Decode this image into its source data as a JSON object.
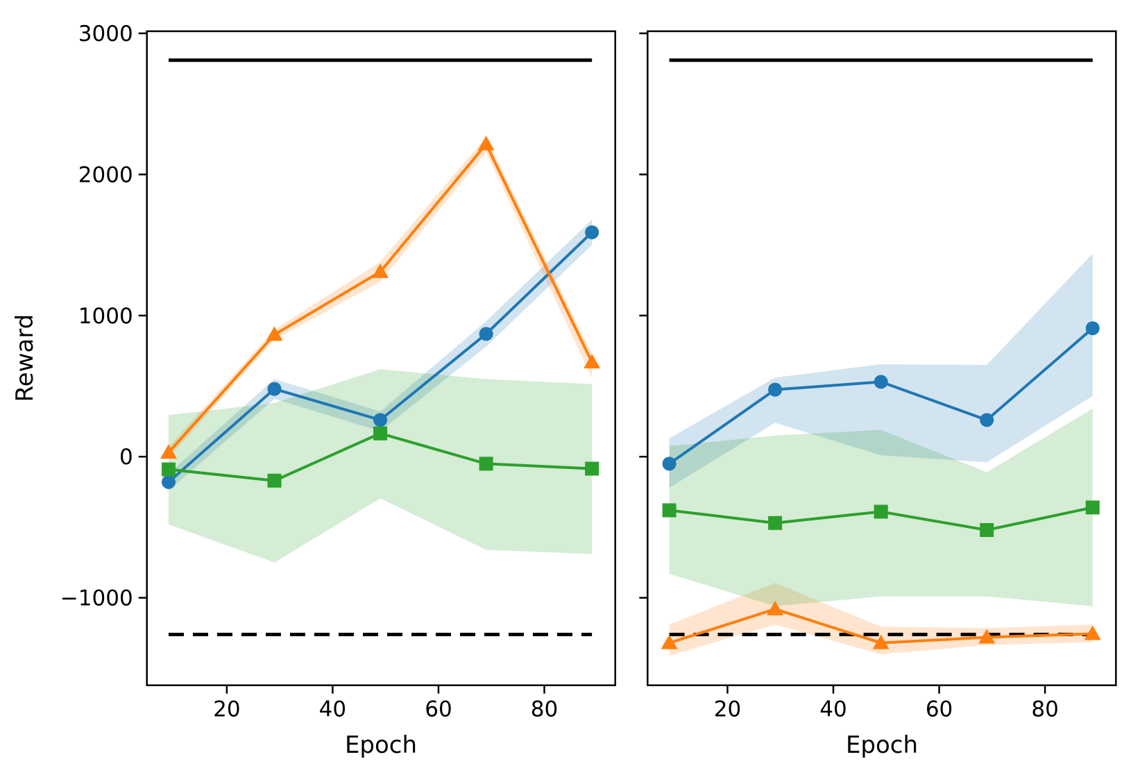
{
  "chart_data": {
    "type": "line",
    "title": "",
    "ylabel": "Reward",
    "legend": "none",
    "grid": "off",
    "colors": {
      "blue_series": "#1f77b4",
      "orange_series": "#ff7f0e",
      "green_series": "#2ca02c",
      "reference_lines": "#000000",
      "band_opacity_note": "shaded std bands at ~20% opacity of series color"
    },
    "panels": [
      {
        "name": "left-panel",
        "xlabel": "Epoch",
        "xlim": [
          4.9,
          93.4
        ],
        "ylim": [
          -1620,
          3015
        ],
        "xticks": [
          20,
          40,
          60,
          80
        ],
        "yticks": [
          -1000,
          0,
          1000,
          2000,
          3000
        ],
        "ytick_labels_visible": true,
        "x": [
          9,
          29,
          49,
          69,
          89
        ],
        "reference_lines": [
          {
            "name": "upper-solid-line",
            "style": "solid",
            "value": 2810
          },
          {
            "name": "lower-dashed-line",
            "style": "dashed",
            "value": -1260
          }
        ],
        "series": [
          {
            "name": "blue-circle-series",
            "marker": "circle",
            "color": "#1f77b4",
            "values": [
              -180,
              480,
              260,
              870,
              1590
            ],
            "band_low": [
              -240,
              410,
              180,
              780,
              1500
            ],
            "band_high": [
              -120,
              550,
              320,
              960,
              1680
            ]
          },
          {
            "name": "orange-triangle-series",
            "marker": "triangle",
            "color": "#ff7f0e",
            "values": [
              30,
              865,
              1310,
              2215,
              670
            ],
            "band_low": [
              -10,
              830,
              1240,
              2155,
              560
            ],
            "band_high": [
              70,
              900,
              1380,
              2265,
              730
            ]
          },
          {
            "name": "green-square-series",
            "marker": "square",
            "color": "#2ca02c",
            "values": [
              -90,
              -170,
              165,
              -50,
              -85
            ],
            "band_low": [
              -480,
              -750,
              -295,
              -660,
              -690
            ],
            "band_high": [
              295,
              380,
              620,
              550,
              515
            ]
          }
        ]
      },
      {
        "name": "right-panel",
        "xlabel": "Epoch",
        "xlim": [
          4.9,
          93.4
        ],
        "ylim": [
          -1620,
          3015
        ],
        "xticks": [
          20,
          40,
          60,
          80
        ],
        "yticks": [
          -1000,
          0,
          1000,
          2000,
          3000
        ],
        "ytick_labels_visible": false,
        "x": [
          9,
          29,
          49,
          69,
          89
        ],
        "reference_lines": [
          {
            "name": "upper-solid-line",
            "style": "solid",
            "value": 2810
          },
          {
            "name": "lower-dashed-line",
            "style": "dashed",
            "value": -1260
          }
        ],
        "series": [
          {
            "name": "blue-circle-series",
            "marker": "circle",
            "color": "#1f77b4",
            "values": [
              -50,
              475,
              530,
              260,
              910
            ],
            "band_low": [
              -220,
              240,
              10,
              -40,
              430
            ],
            "band_high": [
              130,
              560,
              655,
              650,
              1440
            ]
          },
          {
            "name": "orange-triangle-series",
            "marker": "triangle",
            "color": "#ff7f0e",
            "values": [
              -1320,
              -1080,
              -1320,
              -1280,
              -1255
            ],
            "band_low": [
              -1410,
              -1190,
              -1400,
              -1335,
              -1315
            ],
            "band_high": [
              -1190,
              -895,
              -1205,
              -1215,
              -1190
            ]
          },
          {
            "name": "green-square-series",
            "marker": "square",
            "color": "#2ca02c",
            "values": [
              -380,
              -470,
              -390,
              -520,
              -360
            ],
            "band_low": [
              -830,
              -1060,
              -990,
              -990,
              -1060
            ],
            "band_high": [
              75,
              150,
              190,
              -110,
              340
            ]
          }
        ]
      }
    ]
  }
}
